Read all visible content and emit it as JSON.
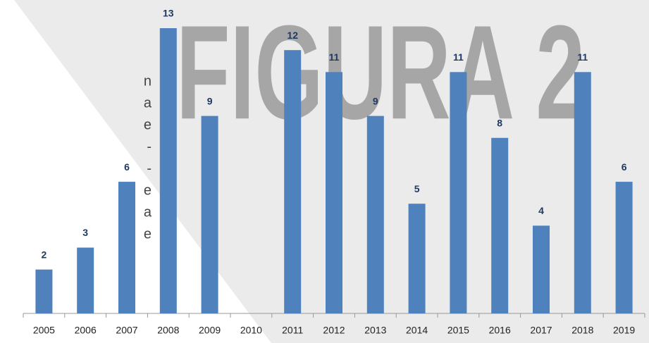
{
  "chart_data": {
    "type": "bar",
    "watermark": "FIGURA 2",
    "side_text": [
      "n",
      "a",
      "e",
      "-",
      "-",
      "e",
      "a",
      "e"
    ],
    "categories": [
      "2005",
      "2006",
      "2007",
      "2008",
      "2009",
      "2010",
      "2011",
      "2012",
      "2013",
      "2014",
      "2015",
      "2016",
      "2017",
      "2018",
      "2019"
    ],
    "values": [
      2,
      3,
      6,
      13,
      9,
      null,
      12,
      11,
      9,
      5,
      11,
      8,
      4,
      11,
      6
    ],
    "color": "#4f81bd",
    "ylim": [
      0,
      13
    ]
  }
}
